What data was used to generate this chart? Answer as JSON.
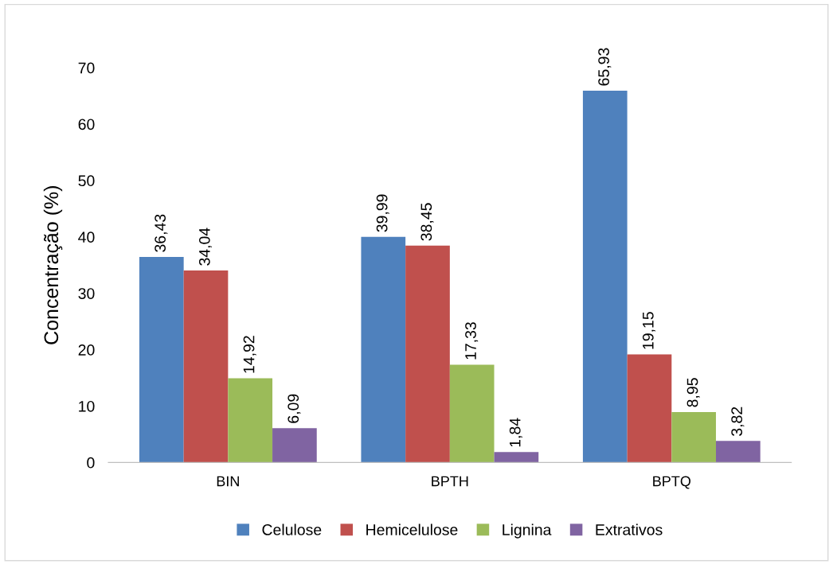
{
  "chart_data": {
    "type": "bar",
    "ylabel": "Concentração (%)",
    "categories": [
      "BIN",
      "BPTH",
      "BPTQ"
    ],
    "series": [
      {
        "name": "Celulose",
        "color": "#4f81bd",
        "values": [
          36.43,
          39.99,
          65.93
        ],
        "value_labels": [
          "36,43",
          "39,99",
          "65,93"
        ]
      },
      {
        "name": "Hemicelulose",
        "color": "#c0504d",
        "values": [
          34.04,
          38.45,
          19.15
        ],
        "value_labels": [
          "34,04",
          "38,45",
          "19,15"
        ]
      },
      {
        "name": "Lignina",
        "color": "#9bbb59",
        "values": [
          14.92,
          17.33,
          8.95
        ],
        "value_labels": [
          "14,92",
          "17,33",
          "8,95"
        ]
      },
      {
        "name": "Extrativos",
        "color": "#8064a2",
        "values": [
          6.09,
          1.84,
          3.82
        ],
        "value_labels": [
          "6,09",
          "1,84",
          "3,82"
        ]
      }
    ],
    "ylim": [
      0,
      70
    ],
    "yticks": [
      0,
      10,
      20,
      30,
      40,
      50,
      60,
      70
    ],
    "grid": false,
    "legend": "bottom"
  }
}
